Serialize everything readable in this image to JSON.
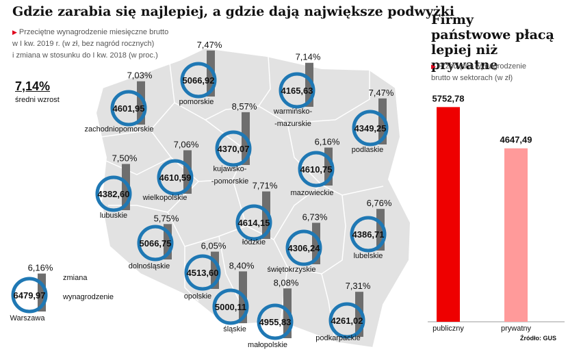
{
  "map_title": "Gdzie zarabia się najlepiej, a gdzie dają największe podwyżki",
  "map_subtitle": [
    "Przeciętne wynagrodzenie miesięczne brutto",
    "w I kw. 2019 r. (w zł, bez nagród rocznych)",
    "i zmiana w stosunku do I kw. 2018 (w proc.)"
  ],
  "average": {
    "value": "7,14%",
    "label": "średni wzrost"
  },
  "legend": {
    "change_label": "zmiana",
    "salary_label": "wynagrodzenie"
  },
  "side_title": [
    "Firmy",
    "państwowe płacą",
    "lepiej niż prywatne"
  ],
  "side_subtitle": [
    "Przeciętne wynagrodzenie",
    "brutto w sektorach (w zł)"
  ],
  "source": "Źródło: GUS",
  "colors": {
    "public": "#ee0000",
    "private": "#ff9a9a",
    "ring": "#1f78b4",
    "change_bar": "#6e6e6e",
    "map": "#e2e2e2"
  },
  "chart_data": [
    {
      "type": "bar",
      "title": "Gdzie zarabia się najlepiej, a gdzie dają największe podwyżki",
      "categories": [
        "Warszawa",
        "zachodniopomorskie",
        "pomorskie",
        "warmińsko-mazurskie",
        "podlaskie",
        "lubuskie",
        "wielkopolskie",
        "kujawsko-pomorskie",
        "mazowieckie",
        "łódzkie",
        "dolnośląskie",
        "opolskie",
        "śląskie",
        "małopolskie",
        "świętokrzyskie",
        "lubelskie",
        "podkarpackie"
      ],
      "series": [
        {
          "name": "wynagrodzenie",
          "values": [
            6479.97,
            4601.95,
            5066.92,
            4165.63,
            4349.25,
            4382.6,
            4610.59,
            4370.07,
            4610.75,
            4614.15,
            5066.75,
            4513.6,
            5000.11,
            4955.83,
            4306.24,
            4386.71,
            4261.02
          ],
          "labels": [
            "6479,97",
            "4601,95",
            "5066,92",
            "4165,63",
            "4349,25",
            "4382,60",
            "4610,59",
            "4370,07",
            "4610,75",
            "4614,15",
            "5066,75",
            "4513,60",
            "5000,11",
            "4955,83",
            "4306,24",
            "4386,71",
            "4261,02"
          ]
        },
        {
          "name": "zmiana",
          "values": [
            6.16,
            7.03,
            7.47,
            7.14,
            7.47,
            7.5,
            7.06,
            8.57,
            6.16,
            7.71,
            5.75,
            6.05,
            8.4,
            8.08,
            6.73,
            6.76,
            7.31
          ],
          "labels": [
            "6,16%",
            "7,03%",
            "7,47%",
            "7,14%",
            "7,47%",
            "7,50%",
            "7,06%",
            "8,57%",
            "6,16%",
            "7,71%",
            "5,75%",
            "6,05%",
            "8,40%",
            "8,08%",
            "6,73%",
            "6,76%",
            "7,31%"
          ]
        }
      ]
    },
    {
      "type": "bar",
      "title": "Firmy państwowe płacą lepiej niż prywatne",
      "categories": [
        "publiczny",
        "prywatny"
      ],
      "values": [
        5752.78,
        4647.49
      ],
      "labels": [
        "5752,78",
        "4647,49"
      ]
    }
  ]
}
